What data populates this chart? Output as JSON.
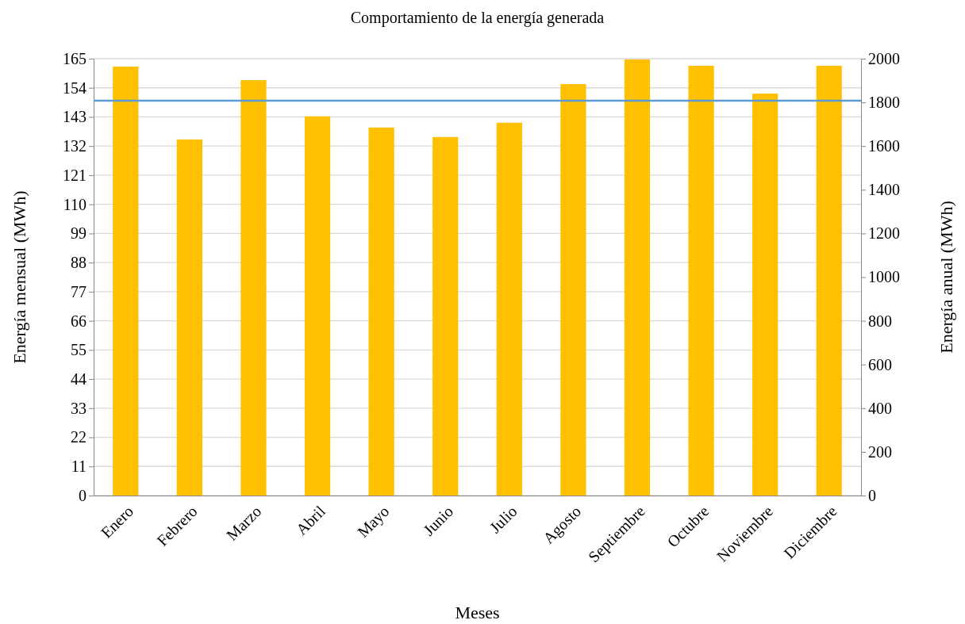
{
  "chart_data": {
    "type": "bar",
    "title": "Comportamiento de la energía generada",
    "xlabel": "Meses",
    "ylabel": "Energía mensual (MWh)",
    "y2label": "Energía anual (MWh)",
    "categories": [
      "Enero",
      "Febrero",
      "Marzo",
      "Abril",
      "Mayo",
      "Junio",
      "Julio",
      "Agosto",
      "Septiembre",
      "Octubre",
      "Noviembre",
      "Diciembre"
    ],
    "series": [
      {
        "color": "#ffc000",
        "values": [
          162,
          134.5,
          156.9,
          143.2,
          139,
          135.4,
          140.8,
          155.4,
          164.7,
          162.3,
          151.8,
          162.3
        ]
      }
    ],
    "ylim": [
      0,
      165
    ],
    "yticks": [
      0,
      11,
      22,
      33,
      44,
      55,
      66,
      77,
      88,
      99,
      110,
      121,
      132,
      143,
      154,
      165
    ],
    "y2lim": [
      0,
      2000
    ],
    "y2ticks": [
      0,
      200,
      400,
      600,
      800,
      1000,
      1200,
      1400,
      1600,
      1800,
      2000
    ],
    "ref_lines": [
      {
        "axis": "y2",
        "value": 1808,
        "color": "#5b9bd5"
      }
    ],
    "grid": "y"
  }
}
